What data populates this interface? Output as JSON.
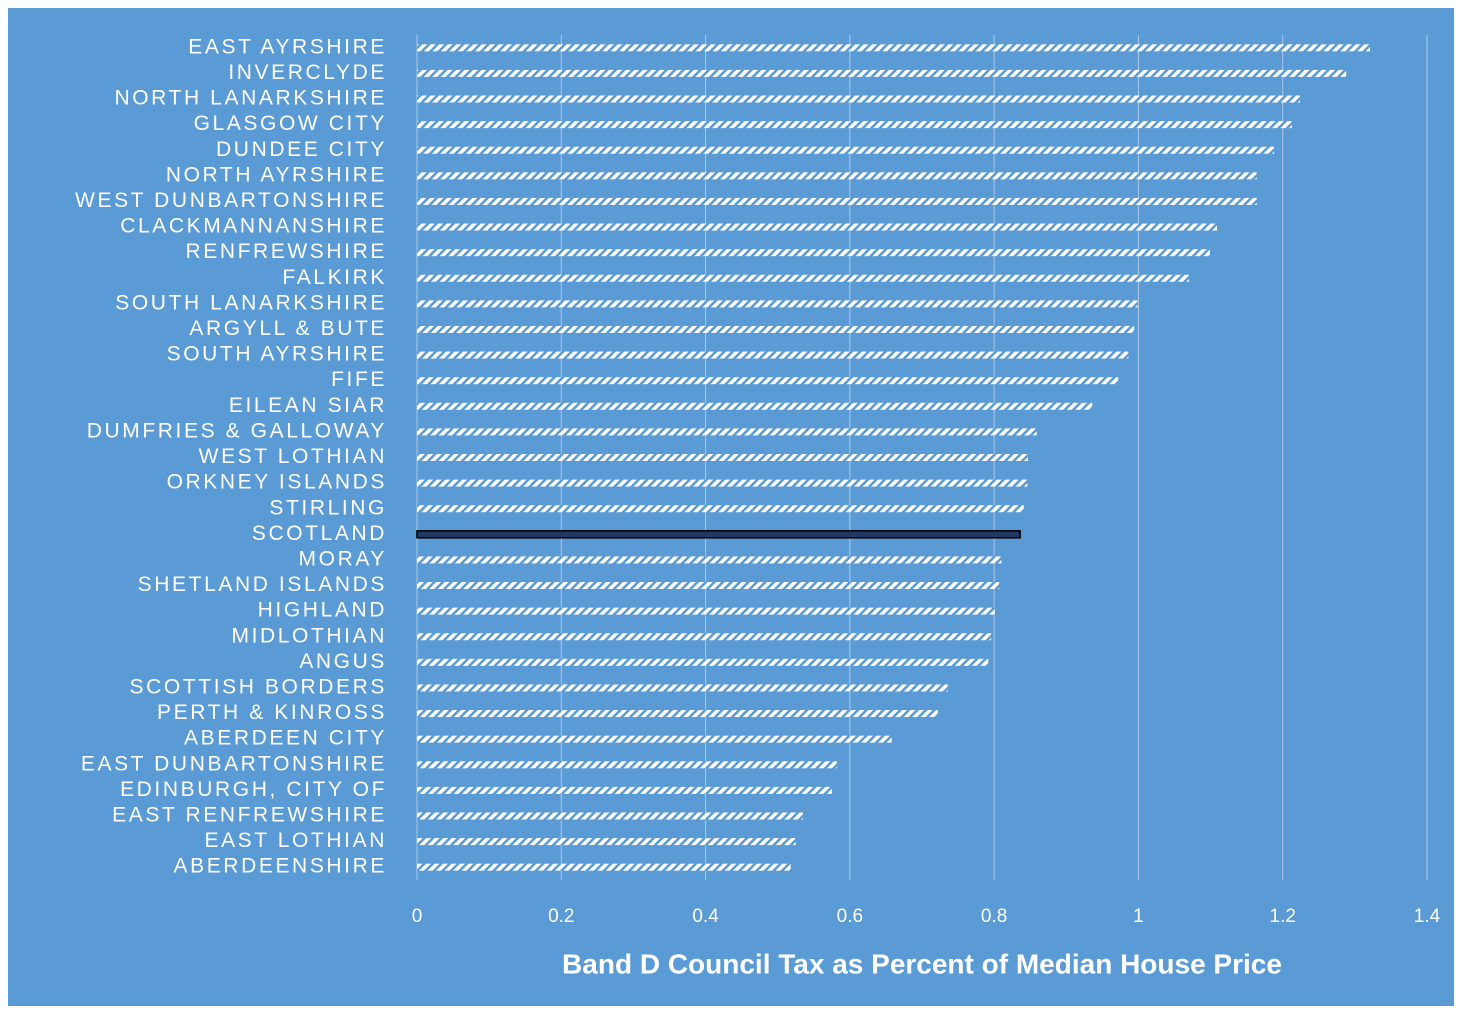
{
  "chart_data": {
    "type": "bar",
    "orientation": "horizontal",
    "x_label": "Band D Council Tax as Percent of Median  House Price",
    "categories": [
      "EAST AYRSHIRE",
      "INVERCLYDE",
      "NORTH LANARKSHIRE",
      "GLASGOW CITY",
      "DUNDEE CITY",
      "NORTH AYRSHIRE",
      "WEST DUNBARTONSHIRE",
      "CLACKMANNANSHIRE",
      "RENFREWSHIRE",
      "FALKIRK",
      "SOUTH LANARKSHIRE",
      "ARGYLL & BUTE",
      "SOUTH AYRSHIRE",
      "FIFE",
      "EILEAN SIAR",
      "DUMFRIES & GALLOWAY",
      "WEST LOTHIAN",
      "ORKNEY ISLANDS",
      "STIRLING",
      "SCOTLAND",
      "MORAY",
      "SHETLAND ISLANDS",
      "HIGHLAND",
      "MIDLOTHIAN",
      "ANGUS",
      "SCOTTISH BORDERS",
      "PERTH & KINROSS",
      "ABERDEEN CITY",
      "EAST DUNBARTONSHIRE",
      "EDINBURGH, CITY OF",
      "EAST RENFREWSHIRE",
      "EAST LOTHIAN",
      "ABERDEENSHIRE"
    ],
    "values": [
      1.321,
      1.288,
      1.224,
      1.213,
      1.188,
      1.164,
      1.164,
      1.109,
      1.099,
      1.07,
      0.999,
      0.994,
      0.986,
      0.972,
      0.936,
      0.859,
      0.847,
      0.846,
      0.841,
      0.836,
      0.81,
      0.807,
      0.801,
      0.796,
      0.792,
      0.736,
      0.722,
      0.658,
      0.582,
      0.575,
      0.535,
      0.525,
      0.518
    ],
    "colors": [
      "hatch",
      "hatch",
      "hatch",
      "hatch",
      "hatch",
      "hatch",
      "hatch",
      "hatch",
      "hatch",
      "hatch",
      "hatch",
      "hatch",
      "hatch",
      "hatch",
      "hatch",
      "hatch",
      "hatch",
      "hatch",
      "hatch",
      "#1f3864",
      "hatch",
      "hatch",
      "hatch",
      "hatch",
      "hatch",
      "hatch",
      "hatch",
      "hatch",
      "hatch",
      "hatch",
      "hatch",
      "hatch",
      "hatch"
    ],
    "xlim": [
      0,
      1.4
    ],
    "xticks": [
      0,
      0.2,
      0.4,
      0.6,
      0.8,
      1,
      1.2,
      1.4
    ],
    "grid": true,
    "background": "#5b9bd5"
  }
}
